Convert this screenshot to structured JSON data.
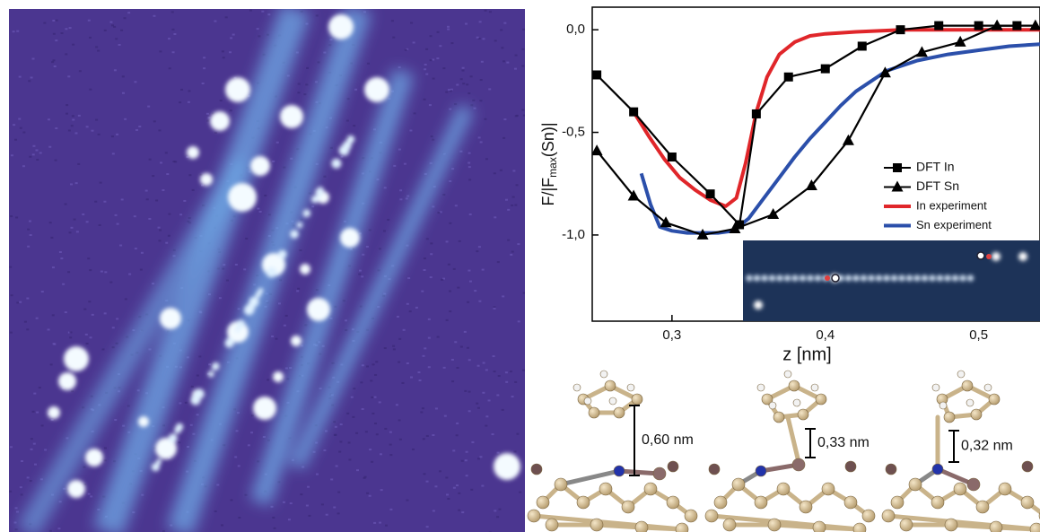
{
  "chart_data": {
    "type": "line",
    "x_label": "z [nm]",
    "y_label": {
      "before": "F/|F",
      "sub": "max",
      "after": "(Sn)|"
    },
    "xlim": [
      0.248,
      0.54
    ],
    "ylim": [
      -1.42,
      0.11
    ],
    "xticks": [
      {
        "value": 0.3,
        "label": "0,3"
      },
      {
        "value": 0.4,
        "label": "0,4"
      },
      {
        "value": 0.5,
        "label": "0,5"
      }
    ],
    "yticks": [
      {
        "value": 0.0,
        "label": "0,0"
      },
      {
        "value": -0.5,
        "label": "-0,5"
      },
      {
        "value": -1.0,
        "label": "-1,0"
      }
    ],
    "legend": "right",
    "series": [
      {
        "name": "DFT In",
        "color": "#000000",
        "marker": "square",
        "x": [
          0.251,
          0.275,
          0.3,
          0.325,
          0.344,
          0.355,
          0.376,
          0.4,
          0.424,
          0.449,
          0.474,
          0.5,
          0.525
        ],
        "values": [
          -0.22,
          -0.4,
          -0.62,
          -0.8,
          -0.95,
          -0.41,
          -0.23,
          -0.19,
          -0.08,
          0.0,
          0.02,
          0.02,
          0.02
        ]
      },
      {
        "name": "DFT Sn",
        "color": "#000000",
        "marker": "triangle",
        "x": [
          0.251,
          0.275,
          0.296,
          0.32,
          0.341,
          0.366,
          0.391,
          0.415,
          0.439,
          0.463,
          0.488,
          0.512,
          0.537
        ],
        "values": [
          -0.59,
          -0.81,
          -0.94,
          -1.0,
          -0.97,
          -0.9,
          -0.76,
          -0.54,
          -0.21,
          -0.11,
          -0.06,
          0.02,
          0.02
        ]
      },
      {
        "name": "In experiment",
        "color": "#e0262a",
        "marker": "none",
        "x": [
          0.275,
          0.285,
          0.295,
          0.305,
          0.315,
          0.325,
          0.335,
          0.342,
          0.348,
          0.355,
          0.362,
          0.37,
          0.38,
          0.39,
          0.4,
          0.42,
          0.45,
          0.5,
          0.54
        ],
        "values": [
          -0.4,
          -0.52,
          -0.63,
          -0.72,
          -0.78,
          -0.83,
          -0.86,
          -0.82,
          -0.65,
          -0.4,
          -0.23,
          -0.12,
          -0.06,
          -0.03,
          -0.02,
          -0.01,
          0.0,
          0.0,
          0.0
        ]
      },
      {
        "name": "Sn experiment",
        "color": "#2b4faa",
        "marker": "none",
        "x": [
          0.28,
          0.286,
          0.292,
          0.3,
          0.31,
          0.32,
          0.33,
          0.34,
          0.35,
          0.36,
          0.37,
          0.38,
          0.39,
          0.4,
          0.41,
          0.42,
          0.44,
          0.46,
          0.48,
          0.5,
          0.52,
          0.54
        ],
        "values": [
          -0.7,
          -0.85,
          -0.96,
          -0.98,
          -0.99,
          -0.99,
          -0.99,
          -0.98,
          -0.92,
          -0.82,
          -0.72,
          -0.62,
          -0.53,
          -0.45,
          -0.37,
          -0.3,
          -0.2,
          -0.15,
          -0.12,
          -0.1,
          -0.08,
          -0.07
        ]
      }
    ],
    "annotations": [
      "0,60 nm",
      "0,33 nm",
      "0,32 nm"
    ]
  }
}
